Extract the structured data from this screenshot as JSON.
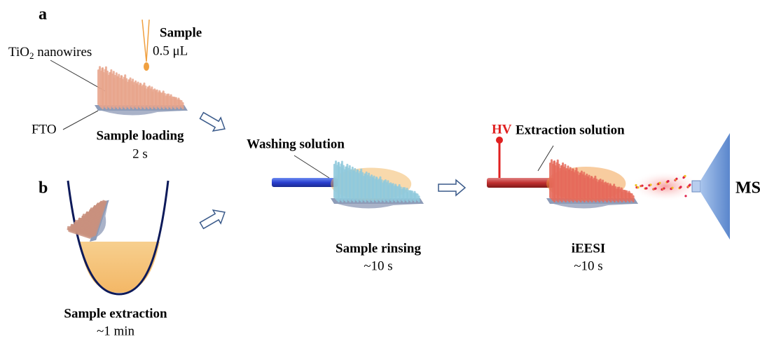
{
  "panels": {
    "a": "a",
    "b": "b"
  },
  "loading": {
    "sample_title": "Sample",
    "sample_volume": "0.5 μL",
    "nanowires": {
      "main": "TiO",
      "sub": "2",
      "rest": " nanowires"
    },
    "substrate": "FTO",
    "step": "Sample loading",
    "time": "2 s"
  },
  "extraction": {
    "step": "Sample extraction",
    "time": "~1 min"
  },
  "rinsing": {
    "solution": "Washing solution",
    "step": "Sample rinsing",
    "time": "~10 s"
  },
  "ionization": {
    "hv": "HV",
    "solution": "Extraction solution",
    "step": "iEESI",
    "time": "~10 s",
    "detector": "MS"
  }
}
